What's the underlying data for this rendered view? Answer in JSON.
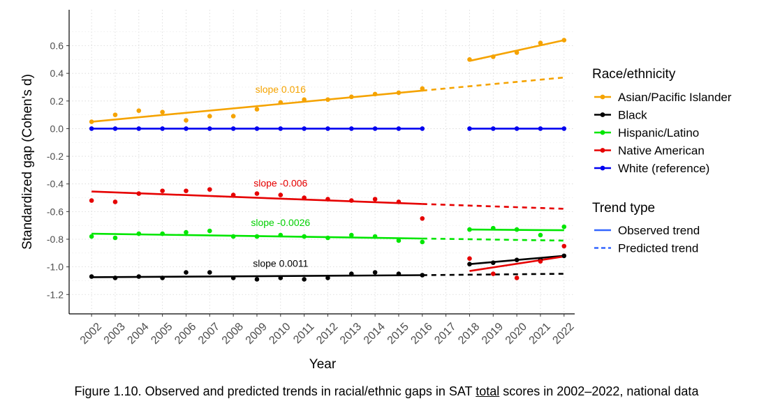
{
  "chart_data": {
    "type": "line",
    "xlabel": "Year",
    "ylabel": "Standardized gap (Cohen's d)",
    "categories": [
      "2002",
      "2003",
      "2004",
      "2005",
      "2006",
      "2007",
      "2008",
      "2009",
      "2010",
      "2011",
      "2012",
      "2013",
      "2014",
      "2015",
      "2016",
      "2017",
      "2018",
      "2019",
      "2020",
      "2021",
      "2022"
    ],
    "y_ticks": [
      "0.6",
      "0.4",
      "0.2",
      "0.0",
      "-0.2",
      "-0.4",
      "-0.6",
      "-0.8",
      "-1.0",
      "-1.2"
    ],
    "ylim": [
      -1.34,
      0.86
    ],
    "grid": true,
    "legend_position": "right",
    "legend_race_title": "Race/ethnicity",
    "legend_trend_title": "Trend type",
    "legend_trend_items": [
      {
        "label": "Observed trend",
        "style": "solid"
      },
      {
        "label": "Predicted trend",
        "style": "dashed"
      }
    ],
    "series": [
      {
        "name": "Asian/Pacific Islander",
        "color": "#F5A300",
        "points": [
          [
            2002,
            0.05
          ],
          [
            2003,
            0.1
          ],
          [
            2004,
            0.13
          ],
          [
            2005,
            0.12
          ],
          [
            2006,
            0.06
          ],
          [
            2007,
            0.09
          ],
          [
            2008,
            0.09
          ],
          [
            2009,
            0.14
          ],
          [
            2010,
            0.19
          ],
          [
            2011,
            0.21
          ],
          [
            2012,
            0.21
          ],
          [
            2013,
            0.23
          ],
          [
            2014,
            0.25
          ],
          [
            2015,
            0.26
          ],
          [
            2016,
            0.29
          ],
          [
            2018,
            0.5
          ],
          [
            2019,
            0.52
          ],
          [
            2020,
            0.55
          ],
          [
            2021,
            0.62
          ],
          [
            2022,
            0.64
          ]
        ],
        "observed_trend": [
          [
            2002,
            0.05
          ],
          [
            2016,
            0.275
          ]
        ],
        "predicted_trend": [
          [
            2016,
            0.275
          ],
          [
            2022,
            0.37
          ]
        ],
        "post_trend": [
          [
            2018,
            0.49
          ],
          [
            2022,
            0.64
          ]
        ],
        "slope_label": "slope 0.016",
        "slope_label_at": [
          2010,
          0.26
        ]
      },
      {
        "name": "Black",
        "color": "#000000",
        "points": [
          [
            2002,
            -1.07
          ],
          [
            2003,
            -1.08
          ],
          [
            2004,
            -1.07
          ],
          [
            2005,
            -1.08
          ],
          [
            2006,
            -1.04
          ],
          [
            2007,
            -1.04
          ],
          [
            2008,
            -1.08
          ],
          [
            2009,
            -1.09
          ],
          [
            2010,
            -1.08
          ],
          [
            2011,
            -1.09
          ],
          [
            2012,
            -1.08
          ],
          [
            2013,
            -1.05
          ],
          [
            2014,
            -1.04
          ],
          [
            2015,
            -1.05
          ],
          [
            2016,
            -1.06
          ],
          [
            2018,
            -0.98
          ],
          [
            2019,
            -0.97
          ],
          [
            2020,
            -0.95
          ],
          [
            2021,
            -0.95
          ],
          [
            2022,
            -0.92
          ]
        ],
        "observed_trend": [
          [
            2002,
            -1.075
          ],
          [
            2016,
            -1.06
          ]
        ],
        "predicted_trend": [
          [
            2016,
            -1.06
          ],
          [
            2022,
            -1.05
          ]
        ],
        "post_trend": [
          [
            2018,
            -0.98
          ],
          [
            2022,
            -0.92
          ]
        ],
        "slope_label": "slope 0.0011",
        "slope_label_at": [
          2010,
          -1.0
        ]
      },
      {
        "name": "Hispanic/Latino",
        "color": "#00E600",
        "points": [
          [
            2002,
            -0.78
          ],
          [
            2003,
            -0.79
          ],
          [
            2004,
            -0.76
          ],
          [
            2005,
            -0.76
          ],
          [
            2006,
            -0.75
          ],
          [
            2007,
            -0.74
          ],
          [
            2008,
            -0.78
          ],
          [
            2009,
            -0.78
          ],
          [
            2010,
            -0.77
          ],
          [
            2011,
            -0.78
          ],
          [
            2012,
            -0.79
          ],
          [
            2013,
            -0.77
          ],
          [
            2014,
            -0.78
          ],
          [
            2015,
            -0.81
          ],
          [
            2016,
            -0.82
          ],
          [
            2018,
            -0.73
          ],
          [
            2019,
            -0.72
          ],
          [
            2020,
            -0.73
          ],
          [
            2021,
            -0.77
          ],
          [
            2022,
            -0.71
          ]
        ],
        "observed_trend": [
          [
            2002,
            -0.76
          ],
          [
            2016,
            -0.795
          ]
        ],
        "predicted_trend": [
          [
            2016,
            -0.795
          ],
          [
            2022,
            -0.81
          ]
        ],
        "post_trend": [
          [
            2018,
            -0.73
          ],
          [
            2022,
            -0.735
          ]
        ],
        "slope_label": "slope -0.0026",
        "slope_label_at": [
          2010,
          -0.705
        ]
      },
      {
        "name": "Native American",
        "color": "#E60000",
        "points": [
          [
            2002,
            -0.52
          ],
          [
            2003,
            -0.53
          ],
          [
            2004,
            -0.47
          ],
          [
            2005,
            -0.45
          ],
          [
            2006,
            -0.45
          ],
          [
            2007,
            -0.44
          ],
          [
            2008,
            -0.48
          ],
          [
            2009,
            -0.47
          ],
          [
            2010,
            -0.48
          ],
          [
            2011,
            -0.5
          ],
          [
            2012,
            -0.51
          ],
          [
            2013,
            -0.52
          ],
          [
            2014,
            -0.51
          ],
          [
            2015,
            -0.53
          ],
          [
            2016,
            -0.65
          ],
          [
            2018,
            -0.94
          ],
          [
            2019,
            -1.05
          ],
          [
            2020,
            -1.08
          ],
          [
            2021,
            -0.96
          ],
          [
            2022,
            -0.85
          ]
        ],
        "observed_trend": [
          [
            2002,
            -0.455
          ],
          [
            2016,
            -0.545
          ]
        ],
        "predicted_trend": [
          [
            2016,
            -0.545
          ],
          [
            2022,
            -0.58
          ]
        ],
        "post_trend": [
          [
            2018,
            -1.03
          ],
          [
            2022,
            -0.925
          ]
        ],
        "slope_label": "slope -0.006",
        "slope_label_at": [
          2010,
          -0.42
        ]
      },
      {
        "name": "White (reference)",
        "color": "#0000F0",
        "points": [
          [
            2002,
            0
          ],
          [
            2003,
            0
          ],
          [
            2004,
            0
          ],
          [
            2005,
            0
          ],
          [
            2006,
            0
          ],
          [
            2007,
            0
          ],
          [
            2008,
            0
          ],
          [
            2009,
            0
          ],
          [
            2010,
            0
          ],
          [
            2011,
            0
          ],
          [
            2012,
            0
          ],
          [
            2013,
            0
          ],
          [
            2014,
            0
          ],
          [
            2015,
            0
          ],
          [
            2016,
            0
          ],
          [
            2018,
            0
          ],
          [
            2019,
            0
          ],
          [
            2020,
            0
          ],
          [
            2021,
            0
          ],
          [
            2022,
            0
          ]
        ],
        "observed_trend": [
          [
            2002,
            0
          ],
          [
            2016,
            0
          ]
        ],
        "predicted_trend": null,
        "post_trend": [
          [
            2018,
            0
          ],
          [
            2022,
            0
          ]
        ],
        "slope_label": null,
        "slope_label_at": null
      }
    ]
  },
  "caption": {
    "before": "Figure 1.10. Observed and predicted trends in racial/ethnic gaps in SAT ",
    "underlined": "total",
    "after": " scores in 2002–2022, national data"
  }
}
